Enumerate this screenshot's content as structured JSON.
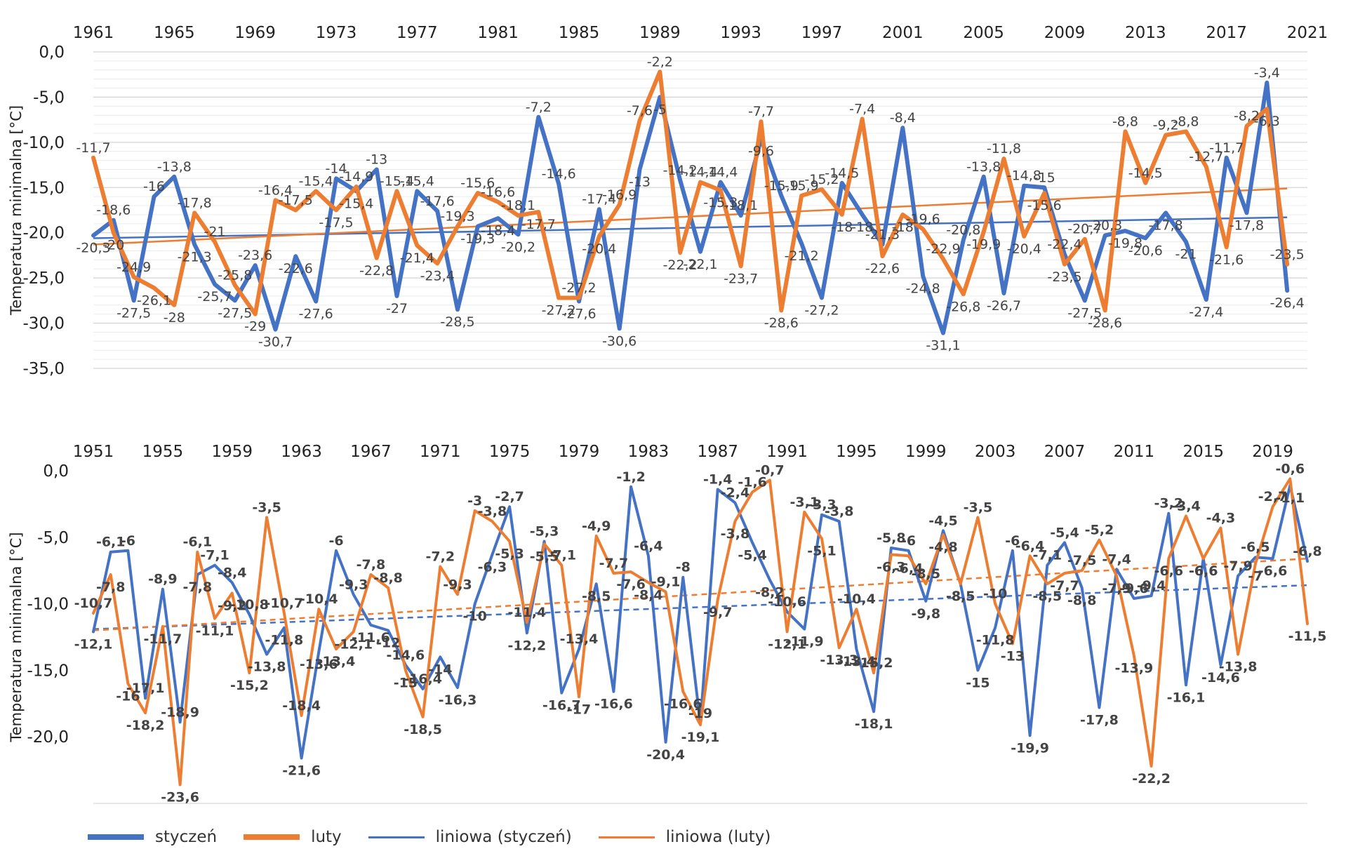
{
  "legend": [
    {
      "label": "styczeń",
      "color": "#4472C4",
      "style": "thick"
    },
    {
      "label": "luty",
      "color": "#ED7D31",
      "style": "thick"
    },
    {
      "label": "liniowa (styczeń)",
      "color": "#4472C4",
      "style": "thin"
    },
    {
      "label": "liniowa (luty)",
      "color": "#ED7D31",
      "style": "thin"
    }
  ],
  "chart_data": [
    {
      "type": "line",
      "ylabel": "Temperatura minimalna [°C]",
      "xlabel": "",
      "ylim": [
        -35,
        0
      ],
      "yticks": [
        "0,0",
        "-5,0",
        "-10,0",
        "-15,0",
        "-20,0",
        "-25,0",
        "-30,0",
        "-35,0"
      ],
      "xaxis_position": "top",
      "x_tick_labels": [
        "1961",
        "1965",
        "1969",
        "1973",
        "1977",
        "1981",
        "1985",
        "1989",
        "1993",
        "1997",
        "2001",
        "2005",
        "2009",
        "2013",
        "2017",
        "2021"
      ],
      "x_start": 1961,
      "x_end": 2021,
      "decimal_separator": "comma",
      "grid": true,
      "trendline_style": "solid",
      "series": [
        {
          "name": "styczeń",
          "color": "#4472C4",
          "values": [
            -20.3,
            -18.6,
            -27.5,
            -16.0,
            -13.8,
            -21.3,
            -25.7,
            -27.5,
            -23.6,
            -30.7,
            -22.6,
            -27.6,
            -14.0,
            -15.4,
            -13.0,
            -27.0,
            -15.4,
            -17.6,
            -28.5,
            -19.3,
            -18.4,
            -20.2,
            -7.2,
            -14.6,
            -27.6,
            -17.4,
            -30.6,
            -13.0,
            -5.0,
            -14.2,
            -22.1,
            -14.4,
            -18.1,
            -9.6,
            -15.9,
            -21.2,
            -27.2,
            -14.5,
            -18.0,
            -21.3,
            -8.4,
            -24.8,
            -31.1,
            -20.8,
            -13.8,
            -26.7,
            -14.8,
            -15.0,
            -22.4,
            -27.5,
            -20.3,
            -19.8,
            -20.6,
            -17.8,
            -21.0,
            -27.4,
            -11.7,
            -17.8,
            -3.4,
            -26.4
          ]
        },
        {
          "name": "luty",
          "color": "#ED7D31",
          "values": [
            -11.7,
            -20.0,
            -24.9,
            -26.1,
            -28.0,
            -17.8,
            -21.0,
            -25.8,
            -29.0,
            -16.4,
            -17.5,
            -15.4,
            -17.5,
            -14.9,
            -22.8,
            -15.4,
            -21.4,
            -23.4,
            -19.3,
            -15.6,
            -16.6,
            -18.1,
            -17.7,
            -27.2,
            -27.2,
            -20.4,
            -16.9,
            -7.6,
            -2.2,
            -22.2,
            -14.4,
            -15.3,
            -23.7,
            -7.7,
            -28.6,
            -15.9,
            -15.2,
            -18.0,
            -7.4,
            -22.6,
            -18.0,
            -19.6,
            -22.9,
            -26.8,
            -19.9,
            -11.8,
            -20.4,
            -15.6,
            -23.5,
            -20.7,
            -28.6,
            -8.8,
            -14.5,
            -9.2,
            -8.8,
            -12.7,
            -21.6,
            -8.2,
            -6.3,
            -23.5
          ]
        },
        {
          "name": "liniowa (styczeń)",
          "color": "#4472C4",
          "trend": [
            -20.6,
            -18.3
          ]
        },
        {
          "name": "liniowa (luty)",
          "color": "#ED7D31",
          "trend": [
            -21.3,
            -15.1
          ]
        }
      ]
    },
    {
      "type": "line",
      "ylabel": "Temperatura minimalna [°C]",
      "xlabel": "",
      "ylim": [
        -25,
        0
      ],
      "yticks": [
        "0,0",
        "-5,0",
        "-10,0",
        "-15,0",
        "-20,0"
      ],
      "xaxis_position": "top",
      "x_tick_labels": [
        "1951",
        "1955",
        "1959",
        "1963",
        "1967",
        "1971",
        "1975",
        "1979",
        "1983",
        "1987",
        "1991",
        "1995",
        "1999",
        "2003",
        "2007",
        "2011",
        "2015",
        "2019"
      ],
      "x_start": 1951,
      "x_end": 2021,
      "decimal_separator": "comma",
      "grid": false,
      "trendline_style": "dashed",
      "series": [
        {
          "name": "styczeń",
          "color": "#4472C4",
          "values": [
            -12.1,
            -6.1,
            -6.0,
            -17.1,
            -8.9,
            -18.9,
            -7.8,
            -7.1,
            -8.4,
            -10.8,
            -13.8,
            -11.8,
            -21.6,
            -13.6,
            -6.0,
            -9.3,
            -11.6,
            -12.0,
            -14.6,
            -16.4,
            -14.0,
            -16.3,
            -10.0,
            -6.3,
            -2.7,
            -12.2,
            -5.3,
            -16.7,
            -13.4,
            -8.5,
            -16.6,
            -1.2,
            -6.4,
            -20.4,
            -8.0,
            -19.0,
            -1.4,
            -2.4,
            -5.4,
            -8.2,
            -10.6,
            -11.9,
            -3.3,
            -3.8,
            -13.4,
            -18.1,
            -5.8,
            -6.0,
            -9.8,
            -4.5,
            -8.5,
            -15.0,
            -11.8,
            -6.0,
            -19.9,
            -7.1,
            -5.4,
            -8.8,
            -17.8,
            -7.4,
            -9.6,
            -9.4,
            -3.2,
            -16.1,
            -6.6,
            -14.6,
            -7.9,
            -6.5,
            -6.6,
            -1.1,
            -6.8
          ]
        },
        {
          "name": "luty",
          "color": "#ED7D31",
          "values": [
            -10.7,
            -7.8,
            -16.0,
            -18.2,
            -11.7,
            -23.6,
            -6.1,
            -11.1,
            -9.2,
            -15.2,
            -3.5,
            -10.7,
            -18.4,
            -10.4,
            -13.4,
            -12.1,
            -7.8,
            -8.8,
            -15.0,
            -18.5,
            -7.2,
            -9.3,
            -3.0,
            -3.8,
            -5.3,
            -11.4,
            -5.5,
            -7.1,
            -17.0,
            -4.9,
            -7.7,
            -7.6,
            -8.4,
            -9.1,
            -16.6,
            -19.1,
            -9.7,
            -3.8,
            -1.6,
            -0.7,
            -12.1,
            -3.1,
            -5.1,
            -13.3,
            -10.4,
            -15.2,
            -6.3,
            -6.4,
            -8.5,
            -4.8,
            -8.5,
            -3.5,
            -10.0,
            -13.0,
            -6.4,
            -8.5,
            -7.7,
            -7.5,
            -5.2,
            -7.9,
            -13.9,
            -22.2,
            -6.6,
            -3.4,
            -6.6,
            -4.3,
            -13.8,
            -7.0,
            -2.7,
            -0.6,
            -11.5
          ]
        },
        {
          "name": "liniowa (styczeń)",
          "color": "#4472C4",
          "trend": [
            -11.9,
            -8.6
          ]
        },
        {
          "name": "liniowa (luty)",
          "color": "#ED7D31",
          "trend": [
            -12.0,
            -6.6
          ]
        }
      ]
    }
  ]
}
